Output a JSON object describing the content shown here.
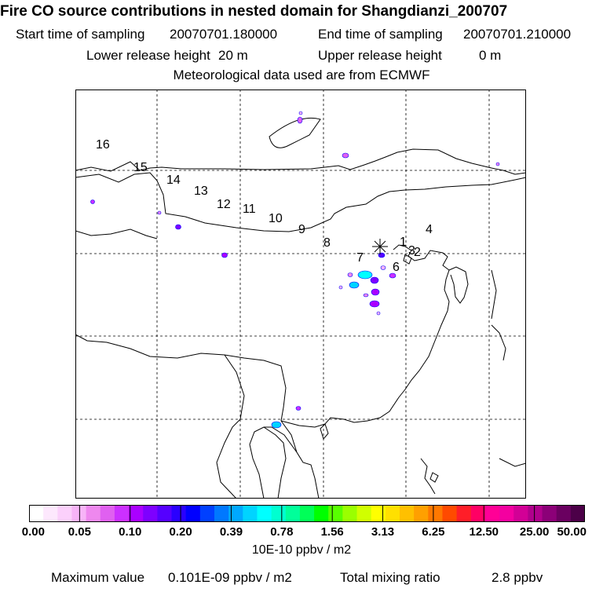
{
  "header": {
    "title": "Fire CO source contributions in nested domain for Shangdianzi_200707",
    "start_label": "Start time of sampling",
    "start_value": "20070701.180000",
    "end_label": "End time of sampling",
    "end_value": "20070701.210000",
    "lower_label": "Lower release height",
    "lower_value": "20 m",
    "upper_label": "Upper release height",
    "upper_value": "0 m",
    "met_line": "Meteorological data used are from ECMWF"
  },
  "map": {
    "receptor_marker": "asterisk-icon",
    "trajectory_labels": [
      "16",
      "15",
      "14",
      "13",
      "12",
      "11",
      "10",
      "9",
      "8",
      "7",
      "6",
      "1",
      "2",
      "3",
      "4"
    ],
    "contribution_levels": [
      "low",
      "low",
      "medium",
      "high"
    ]
  },
  "colorbar": {
    "colors": [
      "#ffffff",
      "#fde8fd",
      "#fbd0fb",
      "#f7b4f7",
      "#ee88ee",
      "#e060f0",
      "#cc30ff",
      "#aa00ff",
      "#7e00ff",
      "#5500ff",
      "#2a00ff",
      "#0000ff",
      "#0040ff",
      "#0078ff",
      "#00a8ff",
      "#00d4ff",
      "#00ffff",
      "#00ffd0",
      "#00ff9a",
      "#00ff58",
      "#00ff00",
      "#58ff00",
      "#9aff00",
      "#d0ff00",
      "#ffff00",
      "#ffe000",
      "#ffc000",
      "#ffa000",
      "#ff7800",
      "#ff4a00",
      "#ff1e28",
      "#ff0064",
      "#ff0096",
      "#f400a0",
      "#d20096",
      "#b0008c",
      "#8c0078",
      "#6a0060",
      "#4c0048"
    ],
    "tick_labels": [
      "0.00",
      "0.05",
      "0.10",
      "0.20",
      "0.39",
      "0.78",
      "1.56",
      "3.13",
      "6.25",
      "12.50",
      "25.00",
      "50.00"
    ],
    "unit": "10E-10 ppbv / m2"
  },
  "footer": {
    "max_label": "Maximum value",
    "max_value": "0.101E-09 ppbv / m2",
    "total_label": "Total mixing ratio",
    "total_value": "2.8 ppbv"
  }
}
